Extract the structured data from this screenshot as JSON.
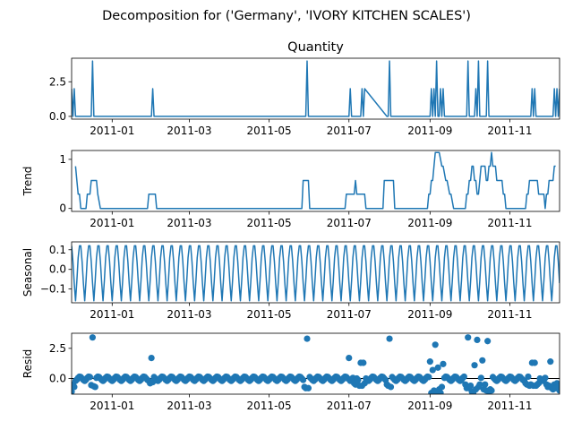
{
  "figure": {
    "suptitle": "Decomposition for ('Germany', 'IVORY KITCHEN SCALES')",
    "line_color": "#1f77b4"
  },
  "chart_data": [
    {
      "type": "line",
      "title": "Quantity",
      "ylabel": "",
      "xlim": [
        "2010-12-01",
        "2011-12-09"
      ],
      "ylim": [
        -0.2,
        4.2
      ],
      "yticks": [
        0.0,
        2.5
      ],
      "ytick_labels": [
        "0.0",
        "2.5"
      ],
      "xticks": [
        "2011-01-01",
        "2011-03-01",
        "2011-05-01",
        "2011-07-01",
        "2011-09-01",
        "2011-11-01"
      ],
      "xtick_labels": [
        "2011-01",
        "2011-03",
        "2011-05",
        "2011-07",
        "2011-09",
        "2011-11"
      ],
      "series": [
        {
          "x": [
            "2010-12-01",
            "2010-12-02",
            "2010-12-03",
            "2010-12-04",
            "2010-12-05",
            "2010-12-06",
            "2010-12-07",
            "2010-12-08",
            "2010-12-09",
            "2010-12-10",
            "2010-12-11",
            "2010-12-12",
            "2010-12-13",
            "2010-12-14",
            "2010-12-15",
            "2010-12-16",
            "2010-12-17",
            "2010-12-18",
            "2010-12-19",
            "2011-01-30",
            "2011-01-31",
            "2011-02-01",
            "2011-02-02",
            "2011-02-03",
            "2011-05-29",
            "2011-05-30",
            "2011-05-31",
            "2011-06-01",
            "2011-06-02",
            "2011-07-01",
            "2011-07-02",
            "2011-07-03",
            "2011-07-09",
            "2011-07-10",
            "2011-07-11",
            "2011-07-12",
            "2011-07-13",
            "2011-07-30",
            "2011-07-31",
            "2011-08-01",
            "2011-08-02",
            "2011-08-03",
            "2011-09-01",
            "2011-09-02",
            "2011-09-03",
            "2011-09-04",
            "2011-09-05",
            "2011-09-06",
            "2011-09-07",
            "2011-09-08",
            "2011-09-09",
            "2011-09-10",
            "2011-09-11",
            "2011-09-12",
            "2011-09-13",
            "2011-09-14",
            "2011-09-15",
            "2011-09-16",
            "2011-09-17",
            "2011-09-18",
            "2011-09-19",
            "2011-09-28",
            "2011-09-29",
            "2011-09-30",
            "2011-10-01",
            "2011-10-02",
            "2011-10-03",
            "2011-10-04",
            "2011-10-05",
            "2011-10-06",
            "2011-10-07",
            "2011-10-08",
            "2011-10-09",
            "2011-10-10",
            "2011-10-11",
            "2011-10-12",
            "2011-10-13",
            "2011-10-14",
            "2011-10-15",
            "2011-10-16",
            "2011-10-17",
            "2011-10-18",
            "2011-10-19",
            "2011-11-15",
            "2011-11-16",
            "2011-11-17",
            "2011-11-18",
            "2011-11-19",
            "2011-11-20",
            "2011-11-21",
            "2011-11-22",
            "2011-11-23",
            "2011-11-24",
            "2011-11-25",
            "2011-11-26",
            "2011-11-27",
            "2011-11-28",
            "2011-11-29",
            "2011-11-30",
            "2011-12-01",
            "2011-12-02",
            "2011-12-03",
            "2011-12-04",
            "2011-12-05",
            "2011-12-06",
            "2011-12-07",
            "2011-12-08",
            "2011-12-09"
          ],
          "y": [
            2,
            0,
            2,
            0,
            0,
            0,
            0,
            0,
            0,
            0,
            0,
            0,
            0,
            0,
            0,
            0,
            4,
            0,
            0,
            0,
            0,
            2,
            0,
            0,
            0,
            4,
            0,
            0,
            0,
            0,
            2,
            0,
            0,
            0,
            2,
            0,
            2,
            0,
            0,
            4,
            0,
            0,
            0,
            2,
            0,
            2,
            0,
            4,
            0,
            0,
            2,
            0,
            2,
            0,
            0,
            0,
            0,
            0,
            0,
            0,
            0,
            0,
            0,
            4,
            0,
            0,
            0,
            0,
            0,
            2,
            0,
            4,
            0,
            0,
            0,
            0,
            0,
            0,
            4,
            0,
            0,
            0,
            0,
            0,
            0,
            0,
            2,
            0,
            2,
            0,
            0,
            0,
            0,
            0,
            0,
            0,
            0,
            0,
            0,
            0,
            0,
            0,
            0,
            2,
            0,
            2,
            0,
            2
          ]
        }
      ]
    },
    {
      "type": "line",
      "title": "",
      "ylabel": "Trend",
      "xlim": [
        "2010-12-01",
        "2011-12-09"
      ],
      "ylim": [
        -0.06,
        1.18
      ],
      "yticks": [
        0,
        1
      ],
      "ytick_labels": [
        "0",
        "1"
      ],
      "xticks": [
        "2011-01-01",
        "2011-03-01",
        "2011-05-01",
        "2011-07-01",
        "2011-09-01",
        "2011-11-01"
      ],
      "xtick_labels": [
        "2011-01",
        "2011-03",
        "2011-05",
        "2011-07",
        "2011-09",
        "2011-11"
      ],
      "series": [
        {
          "x": [
            "2010-12-04",
            "2010-12-05",
            "2010-12-06",
            "2010-12-07",
            "2010-12-08",
            "2010-12-12",
            "2010-12-13",
            "2010-12-15",
            "2010-12-16",
            "2010-12-20",
            "2010-12-21",
            "2010-12-23",
            "2011-01-28",
            "2011-01-29",
            "2011-02-03",
            "2011-02-04",
            "2011-05-26",
            "2011-05-27",
            "2011-05-31",
            "2011-06-01",
            "2011-06-28",
            "2011-06-29",
            "2011-07-02",
            "2011-07-05",
            "2011-07-06",
            "2011-07-07",
            "2011-07-13",
            "2011-07-14",
            "2011-07-16",
            "2011-07-27",
            "2011-07-28",
            "2011-08-04",
            "2011-08-05",
            "2011-08-30",
            "2011-08-31",
            "2011-09-01",
            "2011-09-02",
            "2011-09-03",
            "2011-09-04",
            "2011-09-05",
            "2011-09-08",
            "2011-09-10",
            "2011-09-11",
            "2011-09-13",
            "2011-09-14",
            "2011-09-16",
            "2011-09-17",
            "2011-09-19",
            "2011-09-20",
            "2011-09-28",
            "2011-09-29",
            "2011-09-30",
            "2011-10-01",
            "2011-10-02",
            "2011-10-03",
            "2011-10-04",
            "2011-10-05",
            "2011-10-06",
            "2011-10-07",
            "2011-10-08",
            "2011-10-09",
            "2011-10-10",
            "2011-10-11",
            "2011-10-12",
            "2011-10-13",
            "2011-10-14",
            "2011-10-15",
            "2011-10-16",
            "2011-10-17",
            "2011-10-18",
            "2011-10-19",
            "2011-10-20",
            "2011-10-21",
            "2011-10-22",
            "2011-10-23",
            "2011-10-24",
            "2011-10-25",
            "2011-10-26",
            "2011-10-27",
            "2011-10-28",
            "2011-10-29",
            "2011-10-30",
            "2011-11-13",
            "2011-11-14",
            "2011-11-15",
            "2011-11-16",
            "2011-11-17",
            "2011-11-18",
            "2011-11-19",
            "2011-11-20",
            "2011-11-21",
            "2011-11-22",
            "2011-11-23",
            "2011-11-24",
            "2011-11-25",
            "2011-11-26",
            "2011-11-27",
            "2011-11-28",
            "2011-11-29",
            "2011-11-30",
            "2011-12-01",
            "2011-12-02",
            "2011-12-03",
            "2011-12-04",
            "2011-12-05",
            "2011-12-06"
          ],
          "y": [
            0.86,
            0.57,
            0.29,
            0.29,
            0,
            0,
            0.29,
            0.29,
            0.57,
            0.57,
            0.29,
            0,
            0,
            0.29,
            0.29,
            0,
            0,
            0.57,
            0.57,
            0,
            0,
            0.29,
            0.29,
            0.29,
            0.57,
            0.29,
            0.29,
            0,
            0,
            0,
            0.57,
            0.57,
            0,
            0,
            0.29,
            0.29,
            0.57,
            0.57,
            0.86,
            1.14,
            1.14,
            0.86,
            0.86,
            0.57,
            0.57,
            0.29,
            0.29,
            0,
            0,
            0,
            0.29,
            0.29,
            0.57,
            0.57,
            0.86,
            0.86,
            0.57,
            0.57,
            0.29,
            0.29,
            0.57,
            0.86,
            0.86,
            0.86,
            0.86,
            0.57,
            0.57,
            0.86,
            0.86,
            1.14,
            0.86,
            0.86,
            0.86,
            0.57,
            0.57,
            0.57,
            0.57,
            0.57,
            0.29,
            0.29,
            0,
            0,
            0,
            0.29,
            0.29,
            0.57,
            0.57,
            0.57,
            0.57,
            0.57,
            0.57,
            0.57,
            0.29,
            0.29,
            0.29,
            0.29,
            0.29,
            0,
            0.29,
            0.29,
            0.57,
            0.57,
            0.57,
            0.57,
            0.86,
            0.86
          ]
        }
      ]
    },
    {
      "type": "line",
      "title": "",
      "ylabel": "Seasonal",
      "xlim": [
        "2010-12-01",
        "2011-12-09"
      ],
      "ylim": [
        -0.17,
        0.14
      ],
      "yticks": [
        -0.1,
        0.0,
        0.1
      ],
      "ytick_labels": [
        "−0.1",
        "0.0",
        "0.1"
      ],
      "xticks": [
        "2011-01-01",
        "2011-03-01",
        "2011-05-01",
        "2011-07-01",
        "2011-09-01",
        "2011-11-01"
      ],
      "xtick_labels": [
        "2011-01",
        "2011-03",
        "2011-05",
        "2011-07",
        "2011-09",
        "2011-11"
      ],
      "series": [
        {
          "start": "2010-12-01",
          "end": "2011-12-09",
          "weekly_pattern": [
            0.12,
            0.04,
            -0.07,
            -0.16,
            -0.06,
            0.06,
            0.12
          ]
        }
      ]
    },
    {
      "type": "scatter",
      "title": "",
      "ylabel": "Resid",
      "xlim": [
        "2010-12-01",
        "2011-12-09"
      ],
      "ylim": [
        -1.3,
        3.75
      ],
      "yticks": [
        0.0,
        2.5
      ],
      "ytick_labels": [
        "0.0",
        "2.5"
      ],
      "xticks": [
        "2011-01-01",
        "2011-03-01",
        "2011-05-01",
        "2011-07-01",
        "2011-09-01",
        "2011-11-01"
      ],
      "xtick_labels": [
        "2011-01",
        "2011-03",
        "2011-05",
        "2011-07",
        "2011-09",
        "2011-11"
      ],
      "baseline": 0,
      "series": [
        {
          "start": "2010-12-01",
          "end": "2011-12-09",
          "base": [
            0.12,
            0.0,
            -0.12,
            -0.2,
            -0.1,
            0.05,
            0.15
          ],
          "overrides": {
            "2010-12-01": -1.1,
            "2010-12-02": -0.5,
            "2010-12-03": -0.7,
            "2010-12-16": -0.55,
            "2010-12-17": 3.4,
            "2010-12-18": -0.65,
            "2010-12-19": -0.7,
            "2011-01-30": -0.4,
            "2011-01-31": 1.7,
            "2011-02-01": -0.3,
            "2011-05-28": -0.7,
            "2011-05-29": -0.8,
            "2011-05-30": 3.3,
            "2011-05-31": -0.8,
            "2011-07-01": 1.7,
            "2011-07-05": -0.4,
            "2011-07-06": -0.5,
            "2011-07-09": -0.6,
            "2011-07-10": 1.3,
            "2011-07-11": -0.6,
            "2011-07-12": 1.3,
            "2011-07-13": -0.4,
            "2011-07-30": -0.5,
            "2011-07-31": -0.6,
            "2011-08-01": 3.3,
            "2011-08-02": -0.7,
            "2011-09-01": 1.4,
            "2011-09-02": -1.2,
            "2011-09-03": 0.7,
            "2011-09-04": -1.0,
            "2011-09-05": 2.8,
            "2011-09-06": -1.3,
            "2011-09-07": 0.9,
            "2011-09-08": -0.9,
            "2011-09-09": -1.2,
            "2011-09-10": -0.7,
            "2011-09-11": 1.2,
            "2011-09-28": -0.5,
            "2011-09-29": -0.8,
            "2011-09-30": 3.4,
            "2011-10-01": -0.8,
            "2011-10-02": -0.6,
            "2011-10-03": -1.1,
            "2011-10-04": -1.2,
            "2011-10-05": 1.1,
            "2011-10-06": -0.9,
            "2011-10-07": 3.2,
            "2011-10-08": -0.7,
            "2011-10-09": -0.5,
            "2011-10-11": 1.5,
            "2011-10-12": -0.9,
            "2011-10-13": -0.5,
            "2011-10-14": -1.0,
            "2011-10-15": 3.1,
            "2011-10-16": -1.1,
            "2011-10-17": -0.9,
            "2011-10-18": -1.0,
            "2011-11-13": -0.4,
            "2011-11-14": -0.5,
            "2011-11-16": -0.6,
            "2011-11-17": -0.5,
            "2011-11-18": 1.3,
            "2011-11-19": -0.6,
            "2011-11-20": 1.3,
            "2011-11-21": -0.6,
            "2011-11-22": -0.5,
            "2011-11-23": -0.4,
            "2011-11-29": -0.5,
            "2011-11-30": -0.7,
            "2011-12-01": -0.6,
            "2011-12-02": 1.4,
            "2011-12-03": -0.8,
            "2011-12-04": -0.9,
            "2011-12-05": -0.5,
            "2011-12-06": -0.8,
            "2011-12-07": -0.4,
            "2011-12-08": -0.7,
            "2011-12-09": -1.0
          }
        }
      ]
    }
  ]
}
